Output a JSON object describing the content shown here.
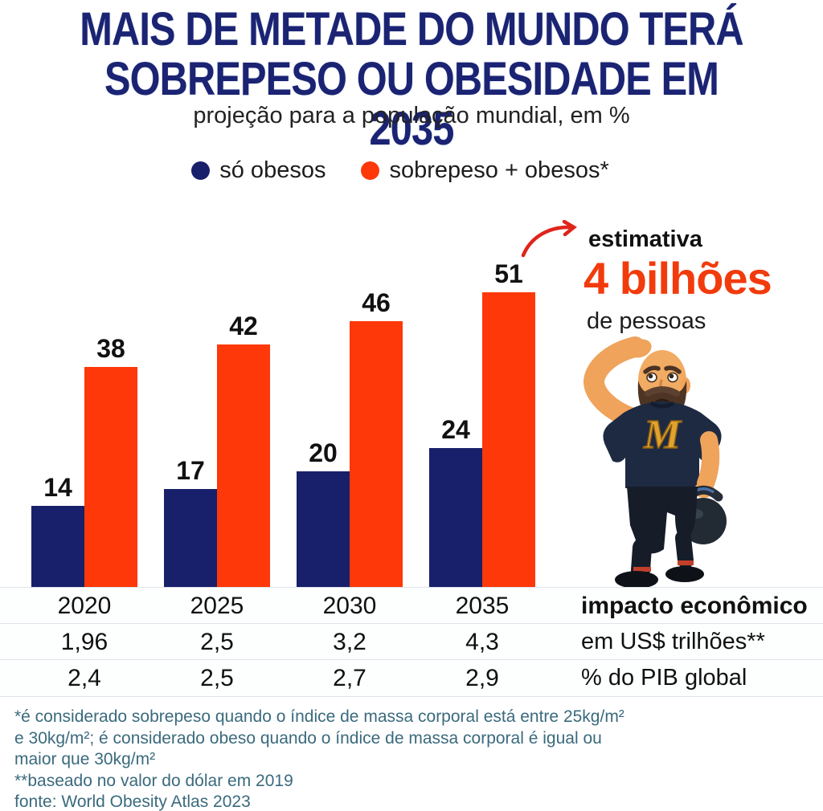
{
  "header": {
    "title_line1": "MAIS DE METADE DO MUNDO TERÁ",
    "title_line2": "SOBREPESO OU OBESIDADE EM 2035",
    "subtitle": "projeção para a população mundial, em %"
  },
  "chart_data": {
    "type": "bar",
    "categories": [
      "2020",
      "2025",
      "2030",
      "2035"
    ],
    "series": [
      {
        "name": "só obesos",
        "color": "#18206b",
        "values": [
          14,
          17,
          20,
          24
        ]
      },
      {
        "name": "sobrepeso + obesos*",
        "color": "#fe3808",
        "values": [
          38,
          42,
          46,
          51
        ]
      }
    ],
    "title": "MAIS DE METADE DO MUNDO TERÁ SOBREPESO OU OBESIDADE EM 2035",
    "subtitle": "projeção para a população mundial, em %",
    "xlabel": "",
    "ylabel": "",
    "ylim": [
      0,
      55
    ],
    "grid": false,
    "legend_position": "top",
    "value_labels": true
  },
  "annotation": {
    "line1": "estimativa",
    "line2": "4 bilhões",
    "line3": "de pessoas",
    "arrow_icon": "curved-arrow-icon",
    "arrow_color": "#df241b",
    "accent_color": "#f23b0c"
  },
  "mascot": {
    "icon": "confused-bodybuilder-kettlebell-illustration",
    "shirt_letter": "M"
  },
  "table": {
    "economic_title": "impacto econômico",
    "rows": [
      {
        "values": [
          "1,96",
          "2,5",
          "3,2",
          "4,3"
        ],
        "label": "em US$ trilhões**"
      },
      {
        "values": [
          "2,4",
          "2,5",
          "2,7",
          "2,9"
        ],
        "label": "% do PIB global"
      }
    ]
  },
  "footnotes": [
    "*é considerado sobrepeso quando o índice de massa corporal está entre 25kg/m²",
    "e 30kg/m²; é considerado obeso quando o índice de massa corporal é igual ou",
    "maior que 30kg/m²",
    "**baseado no valor do dólar em 2019",
    "fonte: World Obesity Atlas 2023"
  ],
  "palette": {
    "title_navy": "#1b2373",
    "bar_navy": "#18206b",
    "bar_orange": "#fe3808",
    "text_black": "#121212",
    "footnote_teal": "#3a6a7d",
    "row_line": "#dde4eb"
  }
}
